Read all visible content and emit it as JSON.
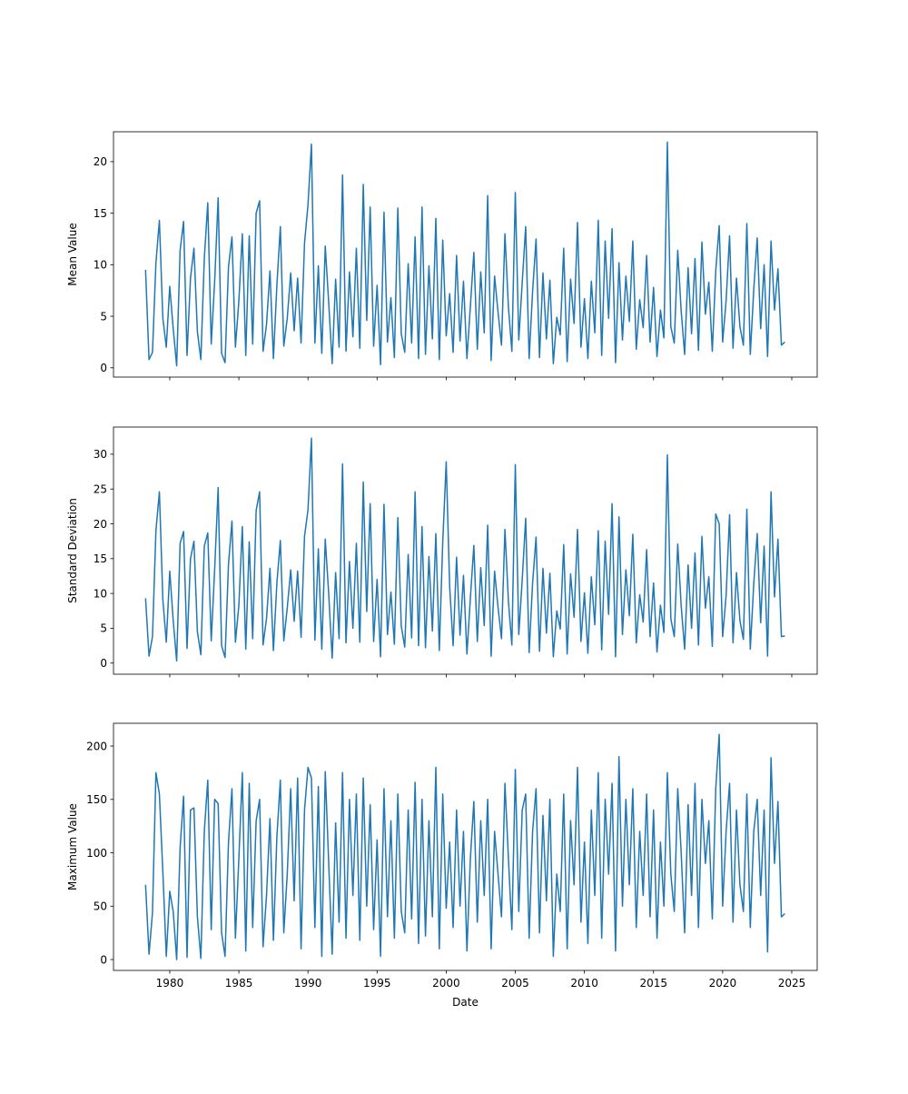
{
  "chart_data": {
    "type": "line",
    "xlabel": "Date",
    "color": "#1f77b4",
    "xlim": [
      1975.93,
      2026.84
    ],
    "xticks": [
      1980,
      1985,
      1990,
      1995,
      2000,
      2005,
      2010,
      2015,
      2020,
      2025
    ],
    "x": [
      1978.25,
      1978.5,
      1978.75,
      1979,
      1979.25,
      1979.5,
      1979.75,
      1980,
      1980.25,
      1980.5,
      1980.75,
      1981,
      1981.25,
      1981.5,
      1981.75,
      1982,
      1982.25,
      1982.5,
      1982.75,
      1983,
      1983.25,
      1983.5,
      1983.75,
      1984,
      1984.25,
      1984.5,
      1984.75,
      1985,
      1985.25,
      1985.5,
      1985.75,
      1986,
      1986.25,
      1986.5,
      1986.75,
      1987,
      1987.25,
      1987.5,
      1987.75,
      1988,
      1988.25,
      1988.5,
      1988.75,
      1989,
      1989.25,
      1989.5,
      1989.75,
      1990,
      1990.25,
      1990.5,
      1990.75,
      1991,
      1991.25,
      1991.5,
      1991.75,
      1992,
      1992.25,
      1992.5,
      1992.75,
      1993,
      1993.25,
      1993.5,
      1993.75,
      1994,
      1994.25,
      1994.5,
      1994.75,
      1995,
      1995.25,
      1995.5,
      1995.75,
      1996,
      1996.25,
      1996.5,
      1996.75,
      1997,
      1997.25,
      1997.5,
      1997.75,
      1998,
      1998.25,
      1998.5,
      1998.75,
      1999,
      1999.25,
      1999.5,
      1999.75,
      2000,
      2000.25,
      2000.5,
      2000.75,
      2001,
      2001.25,
      2001.5,
      2001.75,
      2002,
      2002.25,
      2002.5,
      2002.75,
      2003,
      2003.25,
      2003.5,
      2003.75,
      2004,
      2004.25,
      2004.5,
      2004.75,
      2005,
      2005.25,
      2005.5,
      2005.75,
      2006,
      2006.25,
      2006.5,
      2006.75,
      2007,
      2007.25,
      2007.5,
      2007.75,
      2008,
      2008.25,
      2008.5,
      2008.75,
      2009,
      2009.25,
      2009.5,
      2009.75,
      2010,
      2010.25,
      2010.5,
      2010.75,
      2011,
      2011.25,
      2011.5,
      2011.75,
      2012,
      2012.25,
      2012.5,
      2012.75,
      2013,
      2013.25,
      2013.5,
      2013.75,
      2014,
      2014.25,
      2014.5,
      2014.75,
      2015,
      2015.25,
      2015.5,
      2015.75,
      2016,
      2016.25,
      2016.5,
      2016.75,
      2017,
      2017.25,
      2017.5,
      2017.75,
      2018,
      2018.25,
      2018.5,
      2018.75,
      2019,
      2019.25,
      2019.5,
      2019.75,
      2020,
      2020.25,
      2020.5,
      2020.75,
      2021,
      2021.25,
      2021.5,
      2021.75,
      2022,
      2022.25,
      2022.5,
      2022.75,
      2023,
      2023.25,
      2023.5,
      2023.75,
      2024,
      2024.25,
      2024.5
    ],
    "panels": [
      {
        "ylabel": "Mean Value",
        "ylim": [
          -0.9,
          22.9
        ],
        "yticks": [
          0,
          5,
          10,
          15,
          20
        ],
        "values": [
          9.5,
          0.8,
          1.5,
          10.2,
          14.3,
          4.8,
          2.0,
          7.9,
          3.8,
          0.2,
          11.4,
          14.2,
          1.2,
          8.7,
          11.6,
          3.5,
          0.8,
          10.6,
          16.0,
          2.3,
          8.4,
          16.5,
          1.4,
          0.5,
          9.8,
          12.7,
          2.0,
          6.5,
          13.0,
          1.2,
          12.8,
          2.3,
          15.0,
          16.2,
          1.6,
          4.2,
          9.4,
          0.9,
          8.0,
          13.7,
          2.1,
          4.8,
          9.2,
          3.6,
          8.7,
          2.4,
          12.1,
          15.8,
          21.7,
          2.4,
          9.9,
          1.4,
          11.8,
          6.3,
          0.4,
          8.6,
          2.0,
          18.7,
          1.6,
          9.3,
          3.0,
          11.6,
          1.9,
          17.8,
          4.6,
          15.6,
          2.1,
          8.0,
          0.3,
          15.1,
          2.5,
          6.8,
          1.0,
          15.5,
          3.3,
          1.5,
          10.1,
          2.4,
          12.7,
          0.9,
          15.6,
          1.3,
          9.9,
          2.8,
          14.5,
          0.8,
          12.4,
          3.1,
          7.2,
          1.5,
          10.9,
          2.6,
          8.4,
          0.9,
          6.0,
          11.2,
          1.8,
          9.3,
          3.4,
          16.7,
          0.7,
          8.9,
          5.4,
          2.2,
          13.0,
          5.9,
          1.6,
          17.0,
          2.7,
          8.3,
          13.7,
          0.9,
          7.4,
          12.5,
          1.0,
          9.2,
          2.8,
          8.5,
          0.4,
          4.9,
          3.2,
          11.6,
          0.6,
          8.6,
          4.3,
          14.1,
          2.0,
          6.7,
          0.9,
          8.4,
          3.4,
          14.3,
          1.2,
          12.3,
          4.8,
          13.5,
          0.5,
          10.2,
          2.7,
          8.9,
          4.5,
          12.3,
          1.8,
          6.6,
          3.9,
          10.9,
          2.5,
          7.8,
          1.1,
          5.6,
          2.9,
          21.9,
          4.0,
          2.4,
          11.4,
          5.5,
          1.3,
          9.7,
          3.3,
          10.6,
          1.7,
          12.2,
          5.2,
          8.3,
          1.6,
          9.4,
          13.8,
          2.5,
          6.5,
          12.8,
          1.9,
          8.7,
          4.0,
          2.2,
          14.0,
          1.3,
          7.6,
          12.6,
          3.8,
          10.0,
          1.1,
          12.3,
          5.6,
          9.6,
          2.2,
          2.5
        ]
      },
      {
        "ylabel": "Standard Deviation",
        "ylim": [
          -1.6,
          33.9
        ],
        "yticks": [
          0,
          5,
          10,
          15,
          20,
          25,
          30
        ],
        "values": [
          9.3,
          1.0,
          3.8,
          19.0,
          24.6,
          9.1,
          3.0,
          13.2,
          6.1,
          0.3,
          17.2,
          18.9,
          2.1,
          15.0,
          17.5,
          4.5,
          1.2,
          16.8,
          18.7,
          3.2,
          13.5,
          25.2,
          2.5,
          0.8,
          14.2,
          20.4,
          3.0,
          8.3,
          19.6,
          2.0,
          17.4,
          3.5,
          21.9,
          24.6,
          2.6,
          6.4,
          13.6,
          1.8,
          11.5,
          17.6,
          3.2,
          7.9,
          13.4,
          6.0,
          13.2,
          3.7,
          18.2,
          22.0,
          32.3,
          3.3,
          16.4,
          2.0,
          17.8,
          9.9,
          0.7,
          13.0,
          3.5,
          28.6,
          2.9,
          14.6,
          5.0,
          17.2,
          3.0,
          26.0,
          7.4,
          22.9,
          3.1,
          12.0,
          0.9,
          22.8,
          4.1,
          10.2,
          2.7,
          20.9,
          5.3,
          2.3,
          15.6,
          3.6,
          24.6,
          2.5,
          19.6,
          2.2,
          15.3,
          4.6,
          18.6,
          1.8,
          17.4,
          28.9,
          11.0,
          2.5,
          15.2,
          4.0,
          12.6,
          1.3,
          9.4,
          16.9,
          3.1,
          13.7,
          5.4,
          19.8,
          1.0,
          13.2,
          8.0,
          3.5,
          19.2,
          8.9,
          2.6,
          28.5,
          4.1,
          12.0,
          20.8,
          1.5,
          11.5,
          18.1,
          1.7,
          13.6,
          4.3,
          12.9,
          0.9,
          7.5,
          4.9,
          17.0,
          1.3,
          12.8,
          6.6,
          19.2,
          3.1,
          10.1,
          1.4,
          12.4,
          5.5,
          19.0,
          1.9,
          17.5,
          7.0,
          22.9,
          0.9,
          21.0,
          4.1,
          13.4,
          6.8,
          18.5,
          2.9,
          9.8,
          5.9,
          16.3,
          3.8,
          11.5,
          1.6,
          8.3,
          4.4,
          29.9,
          6.4,
          3.8,
          17.1,
          8.2,
          2.0,
          14.1,
          5.0,
          15.8,
          2.6,
          18.2,
          7.9,
          12.4,
          2.4,
          21.4,
          20.0,
          3.8,
          9.7,
          21.3,
          2.9,
          13.0,
          6.1,
          3.4,
          22.1,
          2.0,
          11.4,
          18.6,
          5.8,
          16.8,
          1.0,
          24.6,
          9.5,
          17.8,
          3.8,
          3.9
        ]
      },
      {
        "ylabel": "Maximum Value",
        "ylim": [
          -10.2,
          221.3
        ],
        "yticks": [
          0,
          50,
          100,
          150,
          200
        ],
        "values": [
          70,
          5,
          44,
          175,
          155,
          82,
          3,
          64,
          45,
          0,
          105,
          153,
          2,
          140,
          142,
          40,
          1,
          120,
          168,
          28,
          150,
          146,
          25,
          3,
          110,
          160,
          20,
          95,
          175,
          8,
          165,
          30,
          130,
          150,
          12,
          60,
          132,
          18,
          115,
          168,
          25,
          80,
          160,
          55,
          170,
          10,
          140,
          180,
          170,
          30,
          162,
          3,
          176,
          90,
          5,
          128,
          35,
          175,
          20,
          150,
          60,
          155,
          18,
          170,
          50,
          145,
          28,
          112,
          3,
          160,
          40,
          130,
          20,
          155,
          45,
          25,
          140,
          38,
          166,
          15,
          150,
          22,
          130,
          40,
          180,
          10,
          155,
          48,
          110,
          30,
          140,
          50,
          120,
          8,
          95,
          148,
          35,
          130,
          60,
          150,
          10,
          120,
          80,
          40,
          165,
          95,
          28,
          178,
          45,
          140,
          155,
          20,
          120,
          160,
          25,
          135,
          55,
          150,
          3,
          80,
          45,
          155,
          10,
          130,
          70,
          180,
          35,
          110,
          15,
          140,
          60,
          175,
          20,
          150,
          80,
          165,
          8,
          190,
          50,
          150,
          70,
          160,
          30,
          120,
          60,
          155,
          40,
          140,
          20,
          110,
          50,
          175,
          80,
          45,
          160,
          100,
          25,
          145,
          60,
          165,
          30,
          150,
          90,
          130,
          38,
          160,
          211,
          50,
          120,
          165,
          35,
          140,
          70,
          45,
          155,
          30,
          120,
          150,
          60,
          140,
          7,
          189,
          90,
          148,
          40,
          43
        ]
      }
    ]
  }
}
